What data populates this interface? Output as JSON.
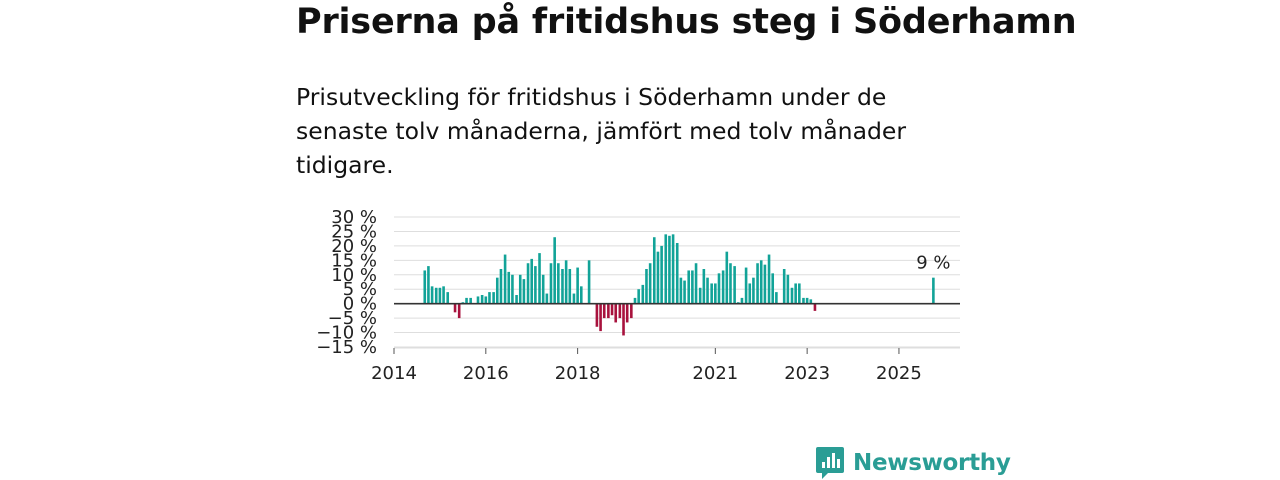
{
  "header": {
    "title": "Priserna på fritidshus steg i Söderhamn",
    "subtitle": "Prisutveckling för fritidshus i Söderhamn under de senaste tolv månaderna, jämfört med tolv månader tidigare."
  },
  "brand": {
    "name": "Newsworthy",
    "icon": "newsworthy-logo-icon"
  },
  "colors": {
    "positive": "#12a398",
    "negative": "#a8123d",
    "grid": "#dedede",
    "zero": "#333333",
    "brand": "#2a9d95"
  },
  "chart_data": {
    "type": "bar",
    "title": "Priserna på fritidshus steg i Söderhamn",
    "ylabel": "",
    "xlabel": "",
    "ylim": [
      -15,
      30
    ],
    "yticks": [
      30,
      25,
      20,
      15,
      10,
      5,
      0,
      -5,
      -10,
      -15
    ],
    "ytick_labels": [
      "30 %",
      "25 %",
      "20 %",
      "15 %",
      "10 %",
      "5 %",
      "0 %",
      "−5 %",
      "−10 %",
      "−15 %"
    ],
    "xlim": [
      2014.0,
      2026.33
    ],
    "xticks": [
      2014,
      2016,
      2018,
      2021,
      2023,
      2025
    ],
    "xtick_labels": [
      "2014",
      "2016",
      "2018",
      "2021",
      "2023",
      "2025"
    ],
    "annotation": {
      "text": "9 %",
      "x": 2025.75,
      "value": 9
    },
    "x": [
      2014.67,
      2014.75,
      2014.83,
      2014.92,
      2015.0,
      2015.08,
      2015.17,
      2015.25,
      2015.33,
      2015.42,
      2015.5,
      2015.58,
      2015.67,
      2015.75,
      2015.83,
      2015.92,
      2016.0,
      2016.08,
      2016.17,
      2016.25,
      2016.33,
      2016.42,
      2016.5,
      2016.58,
      2016.67,
      2016.75,
      2016.83,
      2016.92,
      2017.0,
      2017.08,
      2017.17,
      2017.25,
      2017.33,
      2017.42,
      2017.5,
      2017.58,
      2017.67,
      2017.75,
      2017.83,
      2017.92,
      2018.0,
      2018.08,
      2018.17,
      2018.25,
      2018.33,
      2018.42,
      2018.5,
      2018.58,
      2018.67,
      2018.75,
      2018.83,
      2018.92,
      2019.0,
      2019.08,
      2019.17,
      2019.25,
      2019.33,
      2019.42,
      2019.5,
      2019.58,
      2019.67,
      2019.75,
      2019.83,
      2019.92,
      2020.0,
      2020.08,
      2020.17,
      2020.25,
      2020.33,
      2020.42,
      2020.5,
      2020.58,
      2020.67,
      2020.75,
      2020.83,
      2020.92,
      2021.0,
      2021.08,
      2021.17,
      2021.25,
      2021.33,
      2021.42,
      2021.5,
      2021.58,
      2021.67,
      2021.75,
      2021.83,
      2021.92,
      2022.0,
      2022.08,
      2022.17,
      2022.25,
      2022.33,
      2022.42,
      2022.5,
      2022.58,
      2022.67,
      2022.75,
      2022.83,
      2022.92,
      2023.0,
      2023.08,
      2023.17,
      2023.25,
      2025.75
    ],
    "values": [
      11.5,
      13,
      6,
      5.5,
      5.5,
      6,
      4,
      0,
      -3,
      -5,
      0.5,
      2,
      2,
      0,
      2.5,
      3,
      2.5,
      4,
      4,
      9,
      12,
      17,
      11,
      10,
      3,
      10,
      8.5,
      14,
      15.5,
      13,
      17.5,
      10,
      3.5,
      14,
      23,
      14,
      12,
      15,
      12,
      3.5,
      12.5,
      6,
      0,
      15,
      0,
      -8,
      -9.5,
      -5,
      -5,
      -4,
      -6.5,
      -5,
      -11,
      -6.5,
      -5,
      2,
      5,
      6.5,
      12,
      14,
      23,
      18,
      20,
      24,
      23.5,
      24,
      21,
      9,
      8,
      11.5,
      11.5,
      14,
      5.5,
      12,
      9,
      7,
      7,
      10.5,
      11.5,
      18,
      14,
      13,
      0.5,
      2,
      12.5,
      7,
      9,
      14,
      15,
      13.5,
      17,
      10.5,
      4,
      0,
      12,
      10,
      5.5,
      7,
      7,
      2,
      2,
      1.5,
      -2.5,
      0,
      9
    ]
  }
}
